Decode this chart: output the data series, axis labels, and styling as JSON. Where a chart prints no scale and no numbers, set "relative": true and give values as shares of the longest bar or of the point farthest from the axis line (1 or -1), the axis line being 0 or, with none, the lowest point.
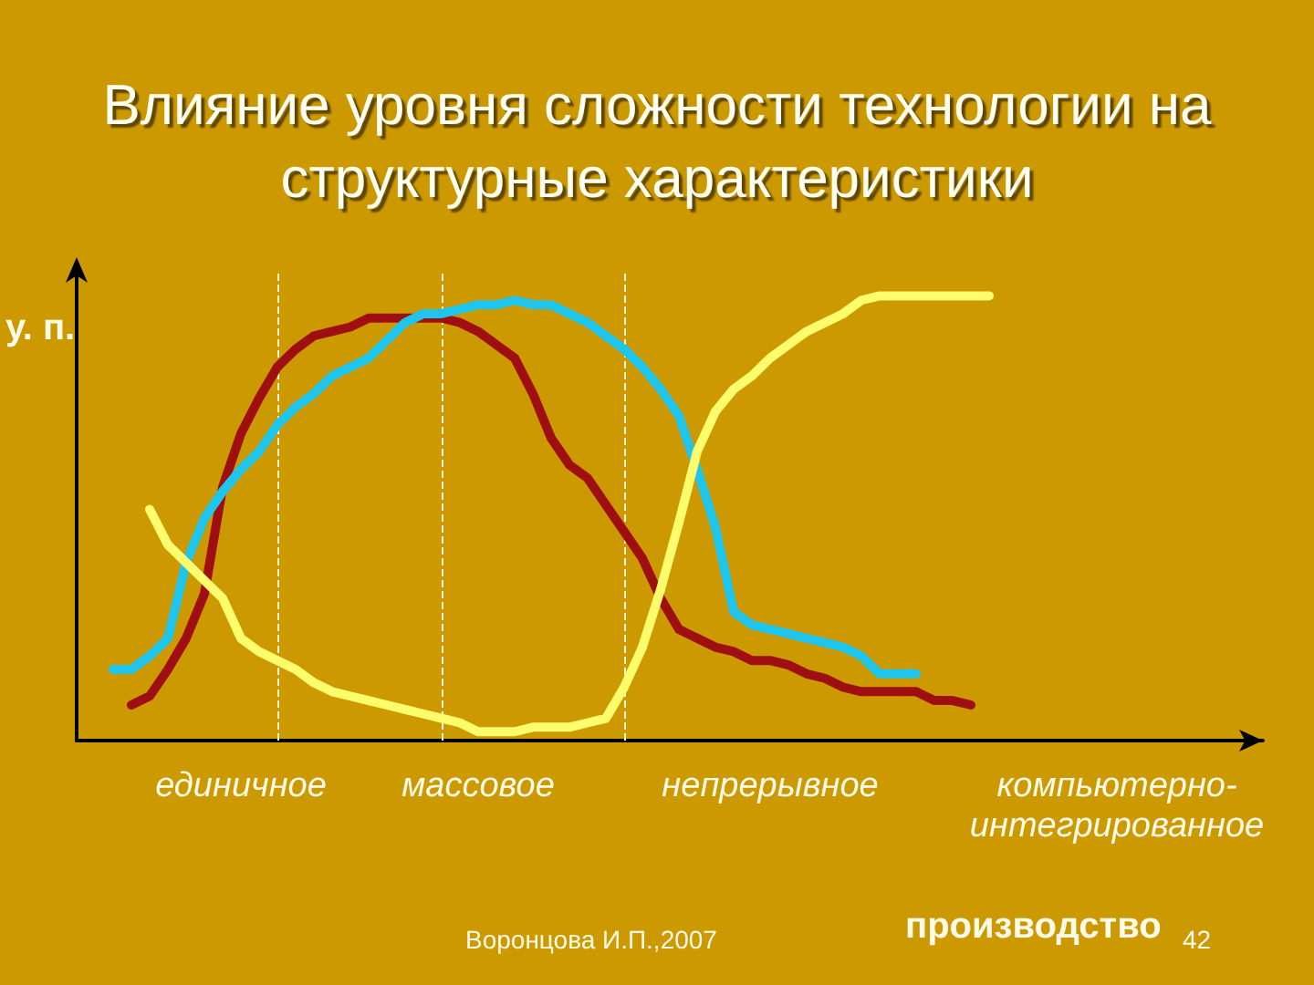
{
  "chart_data": {
    "type": "line",
    "title": "Влияние уровня сложности технологии на структурные характеристики",
    "ylabel": "у. п.",
    "xlabel": "производство",
    "relative": true,
    "marker": "none",
    "line_style": "solid",
    "categories": [
      null,
      null,
      null,
      null,
      null,
      null,
      null,
      null,
      null,
      "единичное",
      null,
      null,
      null,
      null,
      null,
      null,
      null,
      null,
      null,
      null,
      null,
      null,
      "массовое",
      null,
      null,
      null,
      null,
      null,
      null,
      null,
      null,
      null,
      null,
      null,
      null,
      null,
      null,
      null,
      "непрерывное",
      null,
      null,
      null,
      null,
      null,
      null,
      null,
      null,
      null,
      null,
      null,
      null,
      null,
      null,
      null,
      null,
      null,
      null,
      "компьютерно-интегрированное",
      null,
      null,
      null,
      null,
      null,
      null,
      null,
      null
    ],
    "series": [
      {
        "color": "#a00f0f",
        "values": [
          null,
          null,
          null,
          0.08,
          0.1,
          0.16,
          0.23,
          0.33,
          0.57,
          0.69,
          0.77,
          0.84,
          0.88,
          0.91,
          0.92,
          0.93,
          0.95,
          0.95,
          0.95,
          0.95,
          0.95,
          0.94,
          0.92,
          0.89,
          0.86,
          0.78,
          0.68,
          0.62,
          0.59,
          0.53,
          0.47,
          0.41,
          0.32,
          0.25,
          0.23,
          0.21,
          0.2,
          0.18,
          0.18,
          0.17,
          0.15,
          0.14,
          0.12,
          0.11,
          0.11,
          0.11,
          0.11,
          0.09,
          0.09,
          0.08,
          null,
          null,
          null,
          null,
          null,
          null,
          null,
          null,
          null,
          null,
          null,
          null,
          null,
          null,
          null,
          null
        ]
      },
      {
        "color": "#1ec6ee",
        "values": [
          null,
          null,
          0.16,
          0.16,
          0.19,
          0.23,
          0.4,
          0.5,
          0.56,
          0.61,
          0.65,
          0.71,
          0.75,
          0.78,
          0.82,
          0.84,
          0.86,
          0.9,
          0.94,
          0.96,
          0.96,
          0.97,
          0.98,
          0.98,
          0.99,
          0.98,
          0.98,
          0.96,
          0.94,
          0.91,
          0.88,
          0.84,
          0.79,
          0.73,
          0.61,
          0.48,
          0.29,
          0.26,
          0.25,
          0.24,
          0.23,
          0.22,
          0.21,
          0.19,
          0.15,
          0.15,
          0.15,
          null,
          null,
          null,
          null,
          null,
          null,
          null,
          null,
          null,
          null,
          null,
          null,
          null,
          null,
          null,
          null,
          null,
          null,
          null
        ]
      },
      {
        "color": "#fdfc6c",
        "values": [
          null,
          null,
          null,
          null,
          0.52,
          0.44,
          0.4,
          0.36,
          0.32,
          0.23,
          0.2,
          0.18,
          0.16,
          0.13,
          0.11,
          0.1,
          0.09,
          0.08,
          0.07,
          0.06,
          0.05,
          0.04,
          0.02,
          0.02,
          0.02,
          0.03,
          0.03,
          0.03,
          0.04,
          0.05,
          0.12,
          0.21,
          0.34,
          0.49,
          0.65,
          0.74,
          0.79,
          0.82,
          0.86,
          0.89,
          0.92,
          0.94,
          0.96,
          0.99,
          1,
          1,
          1,
          1,
          1,
          1,
          1,
          null,
          null,
          null,
          null,
          null,
          null,
          null,
          null,
          null,
          null,
          null,
          null,
          null,
          null,
          null
        ]
      }
    ],
    "annotations": [
      "Воронцова И.П.,2007",
      "42"
    ]
  }
}
